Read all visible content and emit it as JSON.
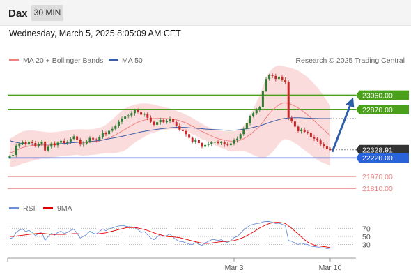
{
  "header": {
    "symbol": "Dax",
    "timeframe": "30 MIN",
    "datetime": "Wednesday, March 5, 2025 8:05:09 AM CET"
  },
  "legend": {
    "bollinger": "MA 20 + Bollinger Bands",
    "ma50": "MA 50",
    "copyright": "Research © 2025 Trading Central",
    "rsi": "RSI",
    "rsi_ma": "9MA"
  },
  "colors": {
    "up_candle": "#2e7d32",
    "down_candle": "#c62828",
    "bollinger_band": "#f9c4c4",
    "ma20": "#f08080",
    "ma50": "#3a5da8",
    "resistance": "#4aa01a",
    "support": "#2a62d8",
    "target": "#f08080",
    "price_label": "#333333",
    "rsi": "#6a8fd8",
    "rsi_ma": "#e00000",
    "arrow": "#2d5fa8"
  },
  "chart_data": {
    "type": "candlestick",
    "price_axis": {
      "min": 21700,
      "max": 23450
    },
    "levels": [
      {
        "label": "23060.00",
        "value": 23060,
        "kind": "resistance"
      },
      {
        "label": "22870.00",
        "value": 22870,
        "kind": "resistance"
      },
      {
        "label": "22328.91",
        "value": 22328.91,
        "kind": "last"
      },
      {
        "label": "22220.00",
        "value": 22220,
        "kind": "support"
      },
      {
        "label": "21970.00",
        "value": 21970,
        "kind": "target"
      },
      {
        "label": "21810.00",
        "value": 21810,
        "kind": "target"
      }
    ],
    "arrow": {
      "from": 22330,
      "to": 23030,
      "direction": "up"
    },
    "close": [
      22245,
      22260,
      22385,
      22410,
      22430,
      22400,
      22440,
      22420,
      22380,
      22410,
      22440,
      22320,
      22370,
      22415,
      22390,
      22425,
      22450,
      22420,
      22440,
      22475,
      22510,
      22465,
      22400,
      22415,
      22440,
      22490,
      22470,
      22460,
      22500,
      22560,
      22540,
      22585,
      22610,
      22650,
      22705,
      22745,
      22775,
      22790,
      22820,
      22860,
      22835,
      22800,
      22810,
      22760,
      22705,
      22665,
      22700,
      22730,
      22700,
      22715,
      22745,
      22700,
      22650,
      22600,
      22580,
      22540,
      22490,
      22440,
      22460,
      22420,
      22370,
      22395,
      22410,
      22430,
      22435,
      22420,
      22430,
      22400,
      22390,
      22415,
      22460,
      22480,
      22540,
      22610,
      22690,
      22780,
      22820,
      22860,
      22900,
      23120,
      23280,
      23330,
      23320,
      23280,
      23310,
      23270,
      23240,
      22760,
      22710,
      22640,
      22580,
      22600,
      22570,
      22560,
      22505,
      22480,
      22455,
      22400,
      22380,
      22340,
      22329
    ],
    "ma20": [
      22290,
      22300,
      22320,
      22340,
      22360,
      22370,
      22380,
      22385,
      22390,
      22390,
      22395,
      22390,
      22390,
      22395,
      22400,
      22405,
      22410,
      22415,
      22420,
      22425,
      22430,
      22435,
      22430,
      22428,
      22428,
      22432,
      22435,
      22440,
      22448,
      22460,
      22475,
      22492,
      22510,
      22530,
      22555,
      22580,
      22605,
      22630,
      22655,
      22680,
      22700,
      22715,
      22728,
      22740,
      22745,
      22748,
      22750,
      22752,
      22750,
      22748,
      22745,
      22740,
      22732,
      22720,
      22705,
      22690,
      22670,
      22645,
      22625,
      22600,
      22575,
      22555,
      22535,
      22515,
      22495,
      22480,
      22470,
      22460,
      22450,
      22445,
      22445,
      22450,
      22460,
      22480,
      22505,
      22535,
      22570,
      22605,
      22645,
      22700,
      22760,
      22815,
      22860,
      22900,
      22935,
      22955,
      22960,
      22950,
      22935,
      22915,
      22890,
      22860,
      22830,
      22795,
      22760,
      22720,
      22680,
      22640,
      22600,
      22560,
      22520
    ],
    "ma50": [
      22450,
      22440,
      22430,
      22420,
      22415,
      22410,
      22408,
      22405,
      22405,
      22405,
      22405,
      22405,
      22405,
      22406,
      22408,
      22410,
      22412,
      22415,
      22418,
      22422,
      22426,
      22430,
      22432,
      22434,
      22436,
      22440,
      22445,
      22450,
      22456,
      22462,
      22470,
      22478,
      22486,
      22494,
      22502,
      22510,
      22520,
      22530,
      22540,
      22550,
      22560,
      22570,
      22578,
      22585,
      22592,
      22598,
      22604,
      22610,
      22615,
      22620,
      22624,
      22628,
      22630,
      22630,
      22630,
      22628,
      22625,
      22622,
      22620,
      22616,
      22612,
      22608,
      22605,
      22602,
      22600,
      22598,
      22596,
      22594,
      22592,
      22592,
      22594,
      22596,
      22600,
      22605,
      22612,
      22620,
      22630,
      22640,
      22652,
      22665,
      22680,
      22695,
      22710,
      22722,
      22734,
      22744,
      22752,
      22756,
      22758,
      22759,
      22759,
      22758,
      22756,
      22754,
      22752,
      22750,
      22749,
      22748,
      22748,
      22748,
      22748
    ],
    "bb_upper": [
      22480,
      22500,
      22530,
      22555,
      22575,
      22585,
      22590,
      22590,
      22585,
      22580,
      22575,
      22570,
      22565,
      22565,
      22568,
      22572,
      22578,
      22584,
      22590,
      22596,
      22602,
      22606,
      22606,
      22604,
      22602,
      22604,
      22608,
      22614,
      22622,
      22640,
      22665,
      22700,
      22735,
      22775,
      22815,
      22855,
      22885,
      22905,
      22920,
      22935,
      22945,
      22950,
      22952,
      22950,
      22945,
      22935,
      22925,
      22915,
      22905,
      22895,
      22885,
      22870,
      22855,
      22838,
      22820,
      22800,
      22780,
      22755,
      22730,
      22705,
      22680,
      22655,
      22635,
      22615,
      22600,
      22590,
      22585,
      22580,
      22578,
      22578,
      22580,
      22590,
      22610,
      22650,
      22710,
      22790,
      22880,
      22970,
      23060,
      23180,
      23290,
      23370,
      23420,
      23450,
      23460,
      23455,
      23445,
      23435,
      23425,
      23410,
      23390,
      23365,
      23335,
      23300,
      23260,
      23215,
      23165,
      23110,
      23050,
      22985,
      22920
    ],
    "bb_lower": [
      22100,
      22100,
      22110,
      22125,
      22145,
      22155,
      22170,
      22180,
      22195,
      22200,
      22215,
      22210,
      22215,
      22225,
      22232,
      22238,
      22242,
      22246,
      22250,
      22254,
      22258,
      22264,
      22254,
      22252,
      22254,
      22260,
      22262,
      22266,
      22274,
      22280,
      22285,
      22284,
      22285,
      22285,
      22295,
      22305,
      22325,
      22355,
      22390,
      22425,
      22455,
      22480,
      22504,
      22530,
      22545,
      22561,
      22575,
      22589,
      22595,
      22601,
      22605,
      22610,
      22609,
      22602,
      22590,
      22580,
      22560,
      22535,
      22520,
      22495,
      22470,
      22455,
      22435,
      22415,
      22390,
      22370,
      22355,
      22340,
      22322,
      22312,
      22310,
      22310,
      22310,
      22310,
      22300,
      22280,
      22260,
      22240,
      22230,
      22220,
      22230,
      22260,
      22300,
      22350,
      22410,
      22455,
      22475,
      22465,
      22445,
      22420,
      22390,
      22355,
      22325,
      22290,
      22260,
      22225,
      22195,
      22170,
      22150,
      22135,
      22120
    ],
    "rsi": {
      "ticks": [
        30,
        50,
        70
      ],
      "levels": [
        30,
        50,
        70
      ],
      "rsi": [
        45,
        47,
        60,
        66,
        68,
        62,
        65,
        60,
        52,
        57,
        61,
        40,
        50,
        58,
        53,
        60,
        63,
        57,
        60,
        65,
        68,
        58,
        46,
        50,
        55,
        63,
        58,
        56,
        62,
        69,
        64,
        69,
        71,
        74,
        76,
        77,
        76,
        74,
        74,
        72,
        67,
        60,
        62,
        54,
        46,
        42,
        49,
        55,
        50,
        52,
        56,
        48,
        42,
        38,
        37,
        34,
        31,
        30,
        35,
        31,
        28,
        34,
        38,
        42,
        42,
        40,
        42,
        37,
        35,
        40,
        47,
        50,
        58,
        66,
        72,
        78,
        80,
        82,
        83,
        86,
        87,
        87,
        85,
        82,
        83,
        80,
        77,
        40,
        38,
        34,
        30,
        34,
        31,
        30,
        26,
        25,
        24,
        22,
        22,
        20,
        21
      ],
      "ma9": [
        50,
        50,
        51,
        52,
        53,
        54,
        55,
        56,
        57,
        58,
        58,
        57,
        56,
        55,
        55,
        55,
        55,
        55,
        56,
        56,
        57,
        57,
        56,
        56,
        56,
        56,
        56,
        56,
        57,
        58,
        59,
        61,
        63,
        65,
        67,
        69,
        71,
        72,
        72,
        72,
        71,
        69,
        67,
        65,
        62,
        59,
        56,
        54,
        52,
        50,
        49,
        49,
        48,
        47,
        45,
        43,
        41,
        39,
        37,
        35,
        34,
        33,
        33,
        34,
        35,
        36,
        37,
        38,
        38,
        39,
        40,
        42,
        45,
        48,
        52,
        56,
        61,
        66,
        71,
        75,
        79,
        82,
        84,
        85,
        85,
        84,
        82,
        76,
        70,
        63,
        56,
        49,
        42,
        36,
        32,
        29,
        27,
        26,
        25,
        24,
        23
      ]
    },
    "x_labels": [
      {
        "label": "Mar 3",
        "index": 70
      },
      {
        "label": "Mar 10",
        "index": 100
      }
    ]
  }
}
